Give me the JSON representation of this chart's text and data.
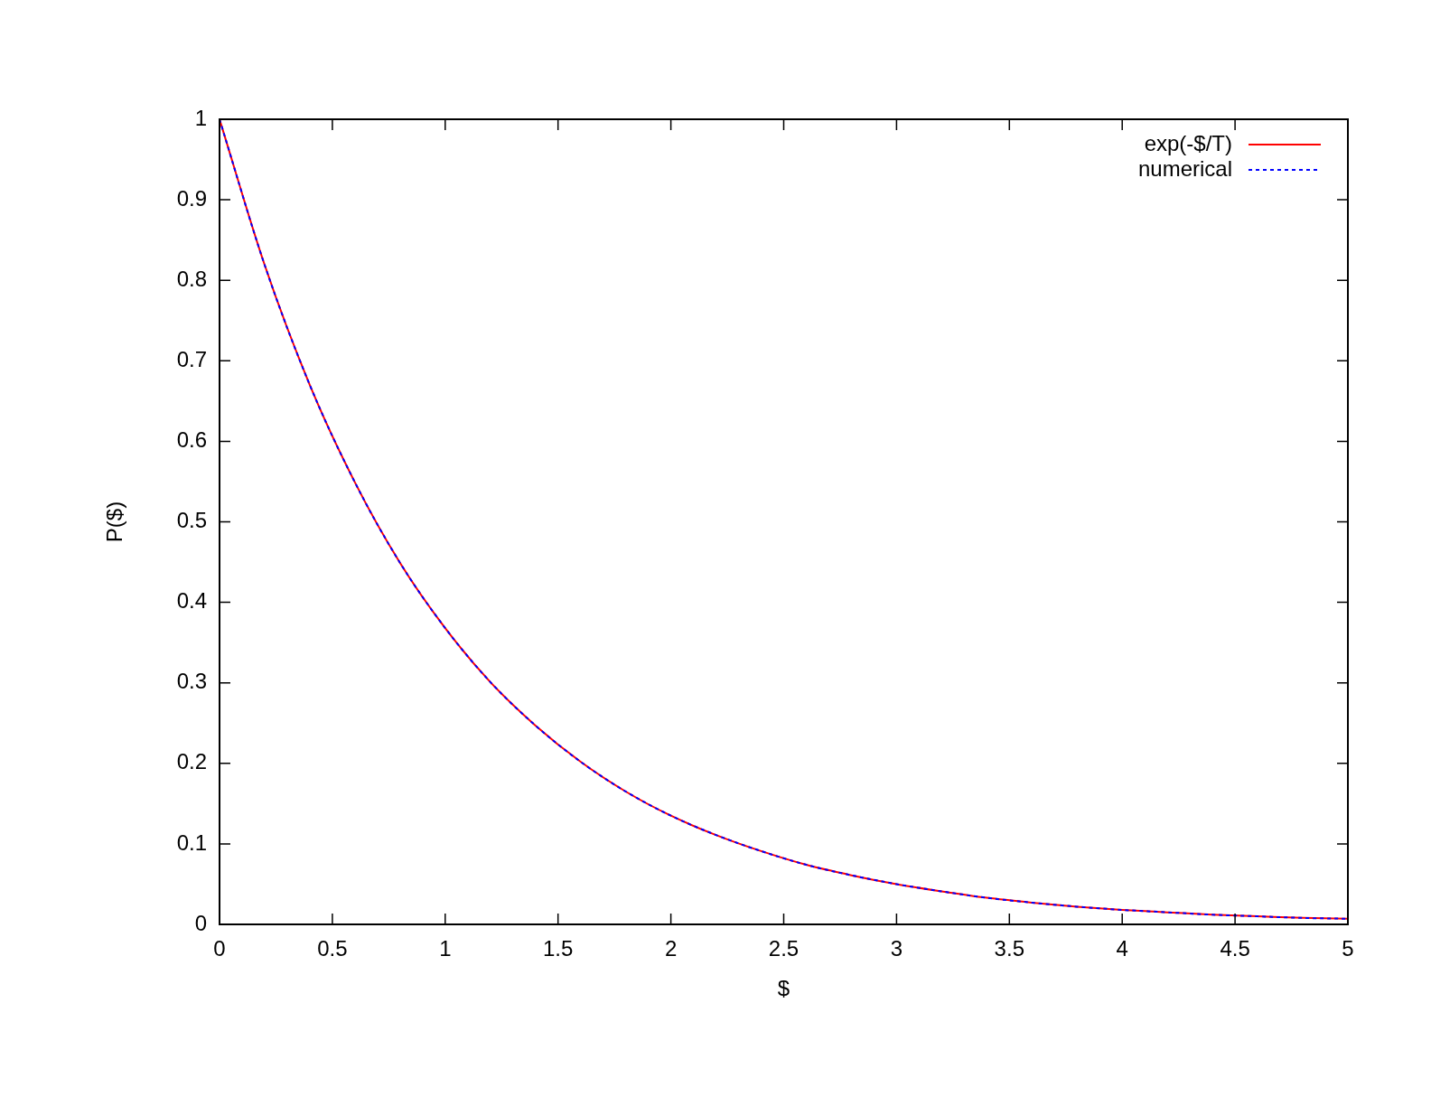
{
  "chart_data": {
    "type": "line",
    "xlabel": "$",
    "ylabel": "P($)",
    "x": [
      0,
      0.2,
      0.4,
      0.6,
      0.8,
      1,
      1.2,
      1.4,
      1.6,
      1.8,
      2,
      2.2,
      2.4,
      2.6,
      2.8,
      3,
      3.2,
      3.4,
      3.6,
      3.8,
      4,
      4.2,
      4.4,
      4.6,
      4.8,
      5
    ],
    "series": [
      {
        "name": "exp(-$/T)",
        "color": "#ff0000",
        "line_style": "solid",
        "values": [
          1,
          0.819,
          0.67,
          0.549,
          0.449,
          0.368,
          0.301,
          0.247,
          0.202,
          0.165,
          0.135,
          0.111,
          0.091,
          0.074,
          0.061,
          0.05,
          0.041,
          0.033,
          0.027,
          0.022,
          0.018,
          0.015,
          0.012,
          0.01,
          0.008,
          0.007
        ]
      },
      {
        "name": "numerical",
        "color": "#0000ff",
        "line_style": "dotted",
        "values": [
          1,
          0.819,
          0.67,
          0.549,
          0.449,
          0.368,
          0.301,
          0.247,
          0.202,
          0.165,
          0.135,
          0.111,
          0.091,
          0.074,
          0.061,
          0.05,
          0.041,
          0.033,
          0.027,
          0.022,
          0.018,
          0.015,
          0.012,
          0.01,
          0.008,
          0.007
        ]
      }
    ],
    "xlim": [
      0,
      5
    ],
    "xticks": [
      0,
      0.5,
      1,
      1.5,
      2,
      2.5,
      3,
      3.5,
      4,
      4.5,
      5
    ],
    "ylim": [
      0,
      1
    ],
    "yticks": [
      0,
      0.1,
      0.2,
      0.3,
      0.4,
      0.5,
      0.6,
      0.7,
      0.8,
      0.9,
      1
    ],
    "grid": false,
    "legend": "top right",
    "marker": "none"
  }
}
